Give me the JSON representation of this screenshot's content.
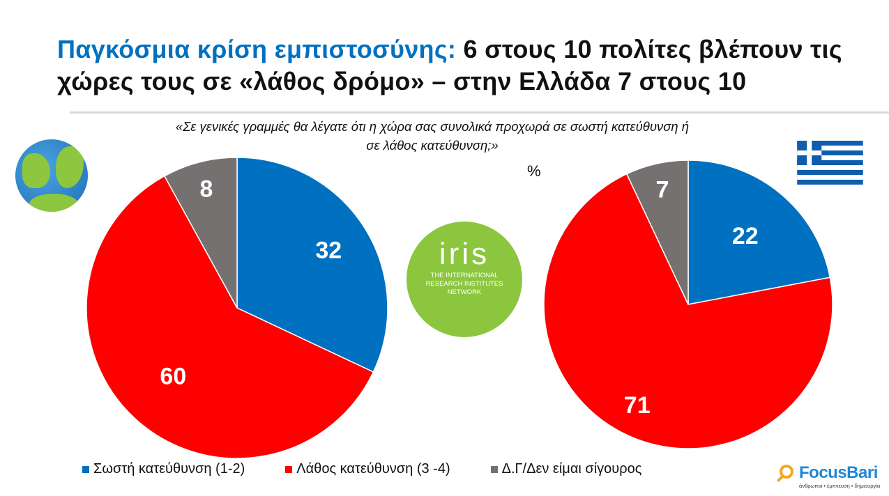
{
  "title": {
    "highlight": "Παγκόσμια κρίση εμπιστοσύνης:",
    "rest": " 6 στους 10 πολίτες βλέπουν τις χώρες τους σε «λάθος δρόμο» – στην Ελλάδα 7 στους 10"
  },
  "question": "«Σε γενικές γραμμές θα λέγατε ότι  η χώρα σας συνολικά προχωρά σε σωστή κατεύθυνση ή σε λάθος κατεύθυνση;»",
  "unit": "%",
  "colors": {
    "blue": "#0070c0",
    "red": "#ff0000",
    "gray": "#767171"
  },
  "chart_data": [
    {
      "type": "pie",
      "title": "Global",
      "categories": [
        "Σωστή κατεύθυνση (1-2)",
        "Λάθος κατεύθυνση (3 -4)",
        "Δ.Γ/Δεν είμαι σίγουρος"
      ],
      "values": [
        32,
        60,
        8
      ]
    },
    {
      "type": "pie",
      "title": "Greece",
      "categories": [
        "Σωστή κατεύθυνση (1-2)",
        "Λάθος κατεύθυνση (3 -4)",
        "Δ.Γ/Δεν είμαι σίγουρος"
      ],
      "values": [
        22,
        71,
        7
      ]
    }
  ],
  "legend": [
    "Σωστή κατεύθυνση (1-2)",
    "Λάθος κατεύθυνση (3 -4)",
    "Δ.Γ/Δεν είμαι σίγουρος"
  ],
  "iris": {
    "mark": "iris",
    "line1": "THE INTERNATIONAL",
    "line2": "RESEARCH INSTITUTES",
    "line3": "NETWORK"
  },
  "logo": {
    "name": "FocusBari",
    "tagline": "άνθρωποι • έμπνευση • δημιουργία"
  }
}
